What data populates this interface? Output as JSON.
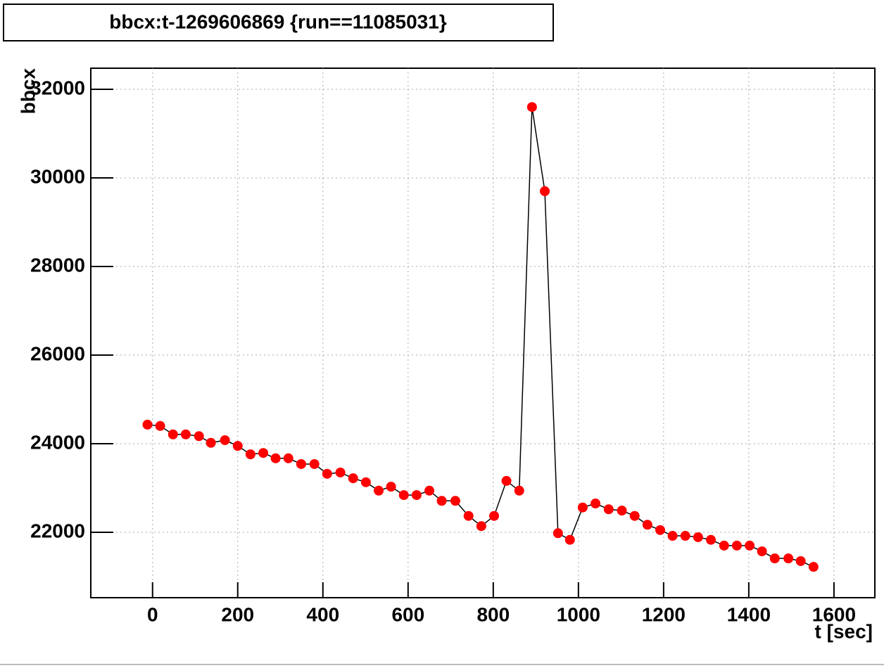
{
  "chart_data": {
    "type": "line",
    "title": "bbcx:t-1269606869 {run==11085031}",
    "x_label": "t [sec]",
    "y_label": "bbcx",
    "x": [
      -12,
      18,
      48,
      78,
      109,
      137,
      170,
      200,
      230,
      260,
      289,
      319,
      349,
      380,
      410,
      441,
      471,
      501,
      531,
      560,
      590,
      620,
      650,
      679,
      711,
      742,
      772,
      802,
      831,
      861,
      891,
      921,
      952,
      980,
      1010,
      1040,
      1071,
      1102,
      1132,
      1162,
      1192,
      1221,
      1251,
      1281,
      1311,
      1342,
      1372,
      1402,
      1431,
      1461,
      1493,
      1522,
      1552
    ],
    "series": [
      {
        "color": "#ff0000",
        "values": [
          24430,
          24400,
          24210,
          24210,
          24170,
          24020,
          24080,
          23950,
          23760,
          23790,
          23670,
          23670,
          23540,
          23540,
          23320,
          23350,
          23220,
          23130,
          22940,
          23030,
          22840,
          22840,
          22940,
          22710,
          22710,
          22370,
          22140,
          22370,
          23160,
          22940,
          31600,
          29700,
          21980,
          21830,
          22560,
          22650,
          22520,
          22490,
          22370,
          22170,
          22050,
          21920,
          21920,
          21890,
          21830,
          21700,
          21700,
          21700,
          21570,
          21410,
          21410,
          21350,
          21220
        ]
      }
    ],
    "xlim": [
      -145,
      1696
    ],
    "xticks": [
      0,
      200,
      400,
      600,
      800,
      1000,
      1200,
      1400,
      1600
    ],
    "ylim": [
      20524,
      32476
    ],
    "yticks": [
      22000,
      24000,
      26000,
      28000,
      30000,
      32000
    ],
    "grid": true
  }
}
